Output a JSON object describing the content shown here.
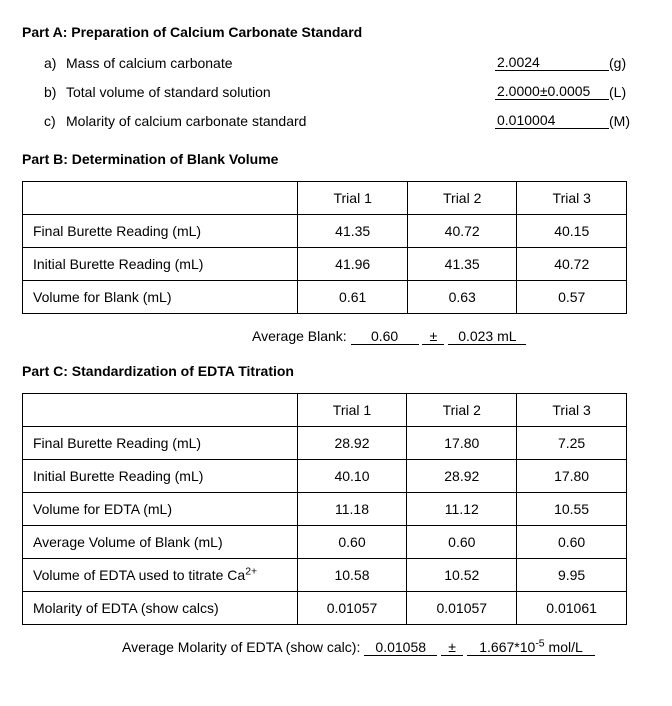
{
  "partA": {
    "title": "Part A: Preparation of Calcium Carbonate Standard",
    "rows": [
      {
        "marker": "a)",
        "label": "Mass of calcium carbonate",
        "value": "2.0024",
        "unit": "(g)"
      },
      {
        "marker": "b)",
        "label": "Total volume of standard solution",
        "value": "2.0000±0.0005",
        "unit": "(L)"
      },
      {
        "marker": "c)",
        "label": "Molarity of calcium carbonate standard",
        "value": "0.010004",
        "unit": "(M)"
      }
    ]
  },
  "partB": {
    "title": "Part B: Determination of Blank Volume",
    "table": {
      "headers": [
        "",
        "Trial 1",
        "Trial 2",
        "Trial 3"
      ],
      "rows": [
        {
          "label": "Final Burette Reading (mL)",
          "cells": [
            "41.35",
            "40.72",
            "40.15"
          ]
        },
        {
          "label": "Initial Burette Reading (mL)",
          "cells": [
            "41.96",
            "41.35",
            "40.72"
          ]
        },
        {
          "label": "Volume for Blank (mL)",
          "cells": [
            "0.61",
            "0.63",
            "0.57"
          ]
        }
      ]
    },
    "summary": {
      "label": "Average Blank:",
      "value": "0.60",
      "pm": "±",
      "err": "0.023 mL"
    }
  },
  "partC": {
    "title": "Part C: Standardization of EDTA Titration",
    "table": {
      "headers": [
        "",
        "Trial 1",
        "Trial 2",
        "Trial 3"
      ],
      "rows": [
        {
          "label": "Final Burette Reading (mL)",
          "cells": [
            "28.92",
            "17.80",
            "7.25"
          ]
        },
        {
          "label": "Initial Burette Reading (mL)",
          "cells": [
            "40.10",
            "28.92",
            "17.80"
          ]
        },
        {
          "label": "Volume for EDTA (mL)",
          "cells": [
            "11.18",
            "11.12",
            "10.55"
          ]
        },
        {
          "label": "Average Volume of Blank (mL)",
          "cells": [
            "0.60",
            "0.60",
            "0.60"
          ]
        },
        {
          "label_html": "Volume of EDTA used to titrate Ca<sup>2+</sup>",
          "label": "Volume of EDTA used to titrate Ca2+",
          "cells": [
            "10.58",
            "10.52",
            "9.95"
          ]
        },
        {
          "label": "Molarity of EDTA (show calcs)",
          "cells": [
            "0.01057",
            "0.01057",
            "0.01061"
          ]
        }
      ]
    },
    "summary": {
      "label": "Average Molarity of EDTA (show calc):",
      "value": "0.01058",
      "pm": "±",
      "err_html": "1.667*10<span class='sup'>-5</span> mol/L",
      "err": "1.667*10-5 mol/L"
    }
  }
}
